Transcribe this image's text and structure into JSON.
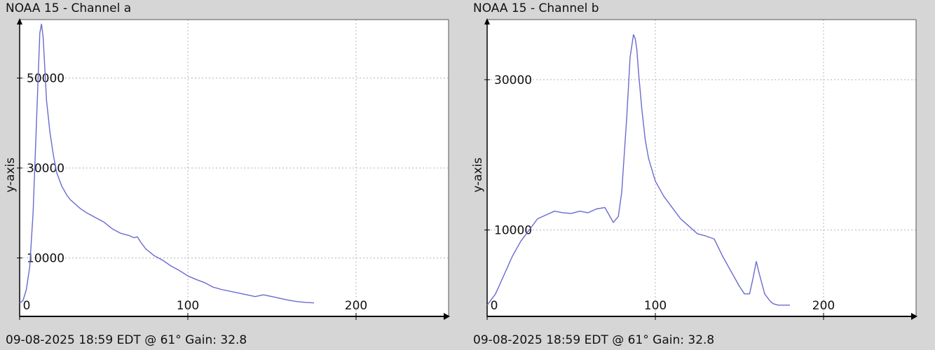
{
  "charts": [
    {
      "title": "NOAA 15 - Channel a",
      "footer": "09-08-2025 18:59 EDT @ 61° Gain: 32.8"
    },
    {
      "title": "NOAA 15 - Channel b",
      "footer": "09-08-2025 18:59 EDT @ 61° Gain: 32.8"
    }
  ],
  "chart_data": [
    {
      "type": "line",
      "title": "NOAA 15 - Channel a",
      "xlabel": "",
      "ylabel": "y-axis",
      "xlim": [
        0,
        255
      ],
      "ylim": [
        -3000,
        63000
      ],
      "xticks": [
        0,
        100,
        200
      ],
      "yticks": [
        10000,
        30000,
        50000
      ],
      "grid": true,
      "line_color": "#6a6ad0",
      "series": [
        {
          "x": [
            0,
            2,
            4,
            6,
            8,
            10,
            12,
            13,
            14,
            15,
            16,
            18,
            20,
            22,
            25,
            28,
            30,
            33,
            36,
            40,
            45,
            50,
            55,
            60,
            65,
            68,
            70,
            72,
            75,
            80,
            85,
            90,
            95,
            100,
            105,
            110,
            115,
            120,
            130,
            140,
            145,
            150,
            155,
            160,
            165,
            170,
            175
          ],
          "y": [
            0,
            500,
            3000,
            8000,
            20000,
            40000,
            60000,
            62000,
            59000,
            52000,
            45000,
            38000,
            33000,
            29000,
            26000,
            24000,
            23000,
            22000,
            21000,
            20000,
            19000,
            18000,
            16500,
            15500,
            15000,
            14500,
            14700,
            13500,
            12000,
            10500,
            9500,
            8200,
            7200,
            6000,
            5200,
            4500,
            3500,
            3000,
            2200,
            1400,
            1800,
            1400,
            1000,
            600,
            300,
            100,
            0
          ]
        }
      ]
    },
    {
      "type": "line",
      "title": "NOAA 15 - Channel b",
      "xlabel": "",
      "ylabel": "y-axis",
      "xlim": [
        0,
        255
      ],
      "ylim": [
        -1500,
        38000
      ],
      "xticks": [
        0,
        100,
        200
      ],
      "yticks": [
        10000,
        30000
      ],
      "grid": true,
      "line_color": "#6a6ad0",
      "series": [
        {
          "x": [
            0,
            5,
            10,
            15,
            20,
            25,
            30,
            35,
            40,
            45,
            50,
            55,
            60,
            65,
            70,
            72,
            75,
            78,
            80,
            83,
            85,
            87,
            88,
            89,
            90,
            92,
            94,
            96,
            98,
            100,
            105,
            110,
            115,
            120,
            125,
            130,
            135,
            140,
            145,
            150,
            153,
            156,
            158,
            160,
            162,
            165,
            168,
            170,
            173,
            177,
            180
          ],
          "y": [
            0,
            1500,
            4000,
            6500,
            8500,
            10000,
            11500,
            12000,
            12500,
            12300,
            12200,
            12500,
            12300,
            12800,
            13000,
            12200,
            11000,
            11800,
            15000,
            25000,
            33000,
            36000,
            35500,
            34000,
            31000,
            26000,
            22000,
            19500,
            18000,
            16500,
            14500,
            13000,
            11500,
            10500,
            9500,
            9200,
            8800,
            6500,
            4500,
            2500,
            1500,
            1500,
            3500,
            5800,
            4000,
            1500,
            600,
            200,
            0,
            0,
            0
          ]
        }
      ]
    }
  ]
}
